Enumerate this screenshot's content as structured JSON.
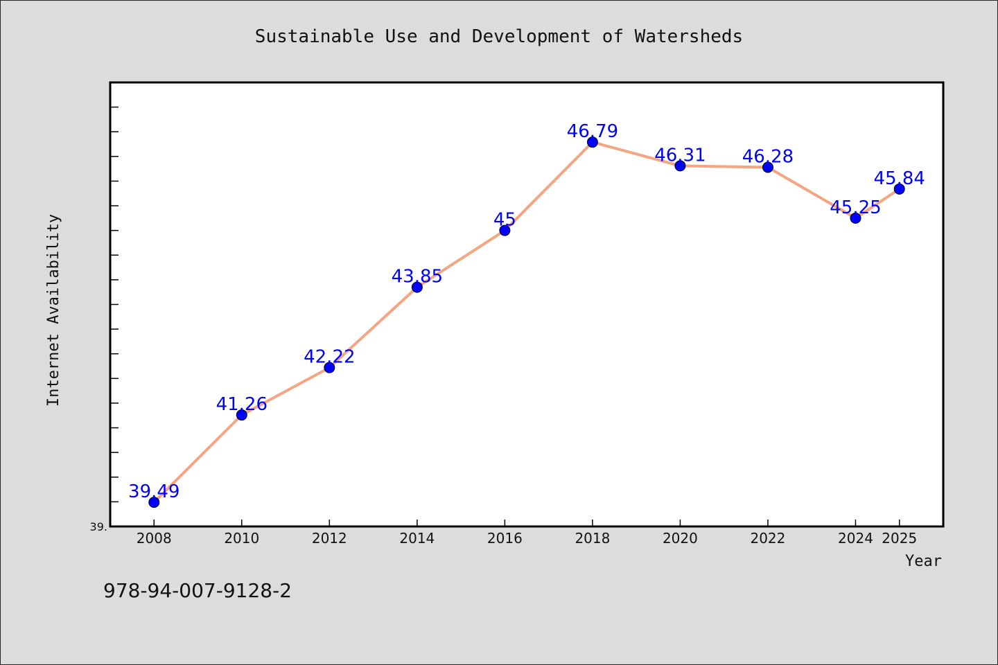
{
  "chart_data": {
    "type": "line",
    "title": "Sustainable Use and Development of Watersheds",
    "xlabel": "Year",
    "ylabel": "Internet Availability",
    "x": [
      2008,
      2010,
      2012,
      2014,
      2016,
      2018,
      2020,
      2022,
      2024,
      2025
    ],
    "xticks": [
      "2008",
      "2010",
      "2012",
      "2014",
      "2016",
      "2018",
      "2020",
      "2022",
      "2024",
      "2025"
    ],
    "series": [
      {
        "values": [
          39.49,
          41.26,
          42.22,
          43.85,
          45,
          46.79,
          46.31,
          46.28,
          45.25,
          45.84
        ],
        "labels": [
          "39.49",
          "41.26",
          "42.22",
          "43.85",
          "45",
          "46.79",
          "46.31",
          "46.28",
          "45.25",
          "45.84"
        ]
      }
    ],
    "ylim": [
      39.0,
      48.0
    ],
    "ytick_label": "39.",
    "grid": false,
    "legend": "none",
    "colors": {
      "line": "#f4a582",
      "marker": "#0000ff",
      "label": "#0000ff",
      "plot_bg": "#ffffff",
      "page_bg": "#dcdcdc"
    }
  },
  "footer": {
    "isbn": "978-94-007-9128-2"
  }
}
